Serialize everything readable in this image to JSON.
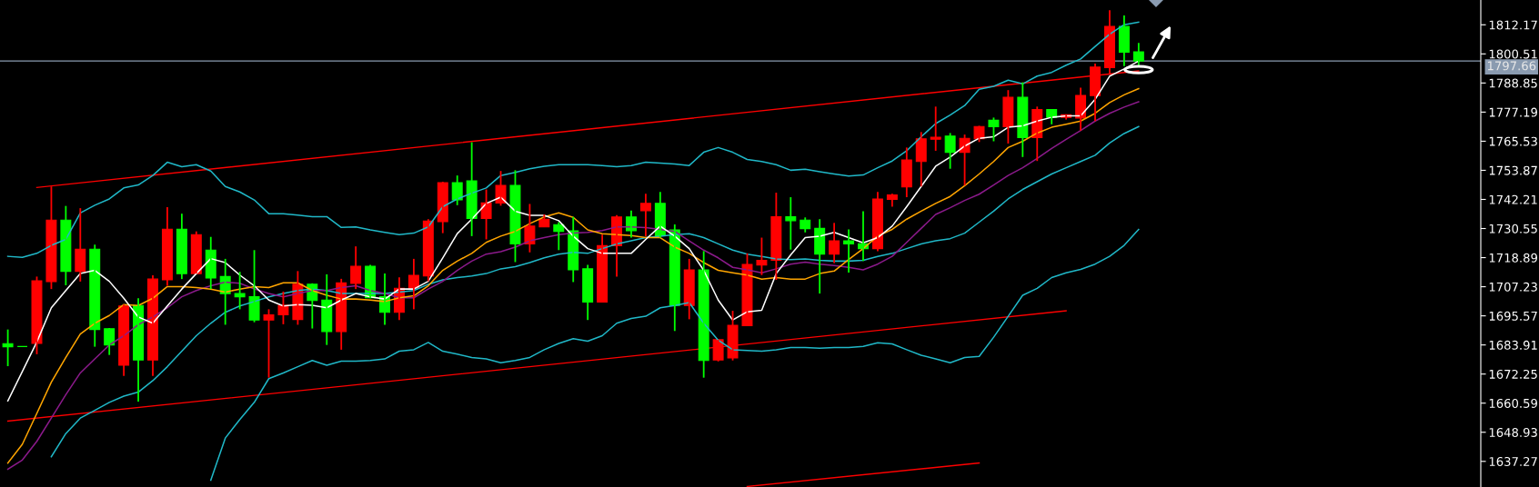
{
  "chart_data": {
    "type": "candlestick",
    "categories": [
      null,
      null,
      null,
      null,
      null,
      null,
      null,
      null,
      null,
      null,
      null,
      null,
      null,
      null,
      null,
      null,
      null,
      null,
      null,
      null,
      null,
      null,
      null,
      null,
      null,
      null,
      null,
      null,
      null,
      null,
      null,
      null,
      null,
      null,
      null,
      null,
      null,
      null,
      null,
      null,
      null,
      null,
      null,
      null,
      null,
      null,
      null,
      null,
      null,
      null,
      null,
      null,
      null,
      null,
      null,
      null,
      null,
      null,
      null,
      null,
      null,
      null,
      null,
      null,
      null,
      null,
      null,
      null,
      null,
      null,
      null,
      null,
      null,
      null,
      null,
      null,
      null,
      null,
      null
    ],
    "ohlc": [
      [
        1684.4,
        1690.1,
        1675.4,
        1683.2
      ],
      [
        1683.3,
        1683.3,
        1683.3,
        1683.3
      ],
      [
        1684.5,
        1711.3,
        1680.2,
        1709.6
      ],
      [
        1709.3,
        1747.4,
        1706.3,
        1733.9
      ],
      [
        1733.9,
        1739.6,
        1707.8,
        1713.4
      ],
      [
        1713.4,
        1738.7,
        1709.3,
        1722.3
      ],
      [
        1722.3,
        1724.1,
        1683.2,
        1690.1
      ],
      [
        1690.4,
        1690.7,
        1679.9,
        1683.9
      ],
      [
        1675.8,
        1700.1,
        1671.5,
        1699.5
      ],
      [
        1699.7,
        1702.6,
        1661.2,
        1677.9
      ],
      [
        1677.9,
        1711.8,
        1671.5,
        1710.3
      ],
      [
        1710.0,
        1739.1,
        1707.6,
        1730.3
      ],
      [
        1730.3,
        1736.5,
        1710.3,
        1712.5
      ],
      [
        1712.5,
        1729.4,
        1712.5,
        1728.1
      ],
      [
        1721.9,
        1727.2,
        1706.3,
        1710.7
      ],
      [
        1711.3,
        1718.4,
        1692.0,
        1704.5
      ],
      [
        1704.5,
        1713.2,
        1698.2,
        1703.2
      ],
      [
        1703.2,
        1721.9,
        1693.0,
        1693.9
      ],
      [
        1693.9,
        1698.2,
        1670.8,
        1696.0
      ],
      [
        1696.0,
        1705.3,
        1692.2,
        1699.8
      ],
      [
        1694.1,
        1713.5,
        1692.0,
        1708.2
      ],
      [
        1708.2,
        1708.6,
        1690.5,
        1701.7
      ],
      [
        1701.9,
        1712.2,
        1683.9,
        1689.3
      ],
      [
        1689.3,
        1710.4,
        1682.0,
        1708.8
      ],
      [
        1708.6,
        1723.4,
        1706.3,
        1715.4
      ],
      [
        1715.4,
        1716.0,
        1702.6,
        1702.8
      ],
      [
        1703.2,
        1712.5,
        1692.0,
        1697.0
      ],
      [
        1697.0,
        1711.0,
        1693.9,
        1706.6
      ],
      [
        1706.6,
        1718.4,
        1698.2,
        1711.8
      ],
      [
        1711.6,
        1734.3,
        1709.4,
        1733.5
      ],
      [
        1733.3,
        1749.3,
        1728.7,
        1748.9
      ],
      [
        1748.9,
        1751.8,
        1739.9,
        1742.0
      ],
      [
        1749.6,
        1765.1,
        1727.5,
        1734.6
      ],
      [
        1734.6,
        1746.2,
        1726.2,
        1740.8
      ],
      [
        1740.8,
        1753.6,
        1739.7,
        1747.8
      ],
      [
        1747.8,
        1753.9,
        1717.1,
        1724.4
      ],
      [
        1724.4,
        1740.4,
        1721.0,
        1731.5
      ],
      [
        1731.2,
        1736.2,
        1731.2,
        1734.3
      ],
      [
        1732.1,
        1733.1,
        1721.9,
        1729.4
      ],
      [
        1729.6,
        1735.2,
        1709.1,
        1714.0
      ],
      [
        1714.4,
        1716.0,
        1693.9,
        1701.1
      ],
      [
        1701.1,
        1728.1,
        1701.1,
        1723.7
      ],
      [
        1723.7,
        1735.9,
        1711.3,
        1735.2
      ],
      [
        1735.2,
        1737.7,
        1726.9,
        1729.7
      ],
      [
        1737.7,
        1744.5,
        1727.5,
        1740.6
      ],
      [
        1740.6,
        1745.2,
        1726.9,
        1727.7
      ],
      [
        1730.0,
        1732.2,
        1689.5,
        1699.7
      ],
      [
        1699.7,
        1718.4,
        1694.2,
        1714.0
      ],
      [
        1714.0,
        1721.5,
        1670.8,
        1677.7
      ],
      [
        1677.9,
        1686.0,
        1677.3,
        1686.0
      ],
      [
        1678.7,
        1697.6,
        1677.7,
        1691.8
      ],
      [
        1691.6,
        1720.6,
        1691.6,
        1716.2
      ],
      [
        1715.9,
        1726.9,
        1711.9,
        1717.8
      ],
      [
        1717.8,
        1744.9,
        1710.0,
        1735.3
      ],
      [
        1735.3,
        1743.1,
        1722.1,
        1733.7
      ],
      [
        1733.9,
        1735.0,
        1729.0,
        1730.5
      ],
      [
        1730.6,
        1734.3,
        1704.5,
        1720.3
      ],
      [
        1720.3,
        1732.8,
        1716.7,
        1725.6
      ],
      [
        1725.6,
        1730.2,
        1712.9,
        1724.4
      ],
      [
        1724.4,
        1737.5,
        1717.5,
        1722.5
      ],
      [
        1722.5,
        1745.2,
        1721.5,
        1742.4
      ],
      [
        1742.2,
        1744.5,
        1739.3,
        1744.0
      ],
      [
        1747.2,
        1763.0,
        1743.1,
        1758.0
      ],
      [
        1757.4,
        1769.2,
        1747.4,
        1766.5
      ],
      [
        1766.3,
        1779.4,
        1761.7,
        1767.1
      ],
      [
        1767.6,
        1768.8,
        1754.5,
        1761.1
      ],
      [
        1761.1,
        1768.2,
        1747.8,
        1766.7
      ],
      [
        1766.5,
        1771.7,
        1765.2,
        1771.4
      ],
      [
        1773.9,
        1775.0,
        1765.5,
        1771.3
      ],
      [
        1771.3,
        1786.0,
        1764.6,
        1783.1
      ],
      [
        1783.1,
        1789.1,
        1759.2,
        1767.0
      ],
      [
        1767.0,
        1779.4,
        1757.6,
        1778.2
      ],
      [
        1778.2,
        1778.3,
        1772.3,
        1775.1
      ],
      [
        1775.1,
        1776.3,
        1774.2,
        1776.1
      ],
      [
        1774.8,
        1787.0,
        1769.8,
        1783.9
      ],
      [
        1783.8,
        1796.6,
        1773.6,
        1795.2
      ],
      [
        1795.0,
        1818.0,
        1792.2,
        1811.5
      ],
      [
        1811.5,
        1815.9,
        1795.6,
        1801.2
      ],
      [
        1801.3,
        1804.9,
        1795.4,
        1797.66
      ]
    ],
    "colors": [
      "#00ff00",
      "#00ff00",
      "#ff0000",
      "#ff0000",
      "#00ff00",
      "#ff0000",
      "#00ff00",
      "#00ff00",
      "#ff0000",
      "#00ff00",
      "#ff0000",
      "#ff0000",
      "#00ff00",
      "#ff0000",
      "#00ff00",
      "#00ff00",
      "#00ff00",
      "#00ff00",
      "#ff0000",
      "#ff0000",
      "#ff0000",
      "#00ff00",
      "#00ff00",
      "#ff0000",
      "#ff0000",
      "#00ff00",
      "#00ff00",
      "#ff0000",
      "#ff0000",
      "#ff0000",
      "#ff0000",
      "#00ff00",
      "#00ff00",
      "#ff0000",
      "#ff0000",
      "#00ff00",
      "#ff0000",
      "#ff0000",
      "#00ff00",
      "#00ff00",
      "#00ff00",
      "#ff0000",
      "#ff0000",
      "#00ff00",
      "#ff0000",
      "#00ff00",
      "#00ff00",
      "#ff0000",
      "#00ff00",
      "#ff0000",
      "#ff0000",
      "#ff0000",
      "#ff0000",
      "#ff0000",
      "#00ff00",
      "#00ff00",
      "#00ff00",
      "#ff0000",
      "#00ff00",
      "#00ff00",
      "#ff0000",
      "#ff0000",
      "#ff0000",
      "#ff0000",
      "#ff0000",
      "#00ff00",
      "#ff0000",
      "#ff0000",
      "#00ff00",
      "#ff0000",
      "#00ff00",
      "#ff0000",
      "#00ff00",
      "#ff0000",
      "#ff0000",
      "#ff0000",
      "#ff0000",
      "#00ff00",
      "#00ff00"
    ],
    "series": [
      {
        "type": "line",
        "color": "#20b8c8",
        "values": [
          1719.4,
          1719.0,
          1720.6,
          1723.8,
          1726.2,
          1736.8,
          1739.9,
          1742.4,
          1746.8,
          1748.0,
          1751.8,
          1757.1,
          1755.3,
          1756.1,
          1753.6,
          1747.4,
          1745.2,
          1742.0,
          1736.5,
          1736.5,
          1735.9,
          1735.3,
          1735.3,
          1731.0,
          1731.2,
          1730.0,
          1729.0,
          1728.1,
          1728.7,
          1731.2,
          1739.3,
          1742.4,
          1744.7,
          1746.8,
          1751.8,
          1753.0,
          1754.5,
          1755.5,
          1756.1,
          1756.1,
          1756.1,
          1755.8,
          1755.3,
          1755.8,
          1757.1,
          1756.8,
          1756.4,
          1755.8,
          1761.1,
          1763.0,
          1761.1,
          1758.2,
          1757.4,
          1756.1,
          1753.9,
          1754.3,
          1753.3,
          1752.4,
          1751.6,
          1752.0,
          1754.9,
          1757.6,
          1761.7,
          1767.3,
          1772.6,
          1776.0,
          1779.8,
          1786.3,
          1787.5,
          1790.0,
          1788.5,
          1791.6,
          1793.1,
          1796.0,
          1798.5,
          1803.5,
          1808.4,
          1812.2,
          1813.2
        ]
      },
      {
        "type": "line",
        "color": "#20b8c8",
        "values": [
          null,
          null,
          null,
          1639.1,
          1648.4,
          1654.6,
          1657.7,
          1660.9,
          1663.4,
          1665.0,
          1669.6,
          1675.2,
          1681.4,
          1687.6,
          1692.6,
          1697.0,
          1699.5,
          1701.3,
          1703.2,
          1704.5,
          1705.7,
          1706.3,
          1705.7,
          1704.5,
          1704.5,
          1704.5,
          1704.5,
          1705.1,
          1705.7,
          1708.2,
          1710.0,
          1710.9,
          1711.5,
          1712.5,
          1714.4,
          1715.3,
          1716.9,
          1718.8,
          1720.3,
          1721.0,
          1720.6,
          1722.5,
          1724.4,
          1725.6,
          1726.9,
          1727.5,
          1728.1,
          1728.5,
          1726.9,
          1724.4,
          1721.9,
          1720.3,
          1719.4,
          1718.4,
          1718.1,
          1718.4,
          1717.8,
          1717.5,
          1717.5,
          1717.8,
          1719.4,
          1720.6,
          1722.5,
          1724.4,
          1725.6,
          1726.5,
          1728.7,
          1733.1,
          1737.5,
          1742.4,
          1746.2,
          1749.3,
          1752.4,
          1754.9,
          1757.4,
          1759.9,
          1764.8,
          1768.6,
          1771.4
        ]
      },
      {
        "type": "line",
        "color": "#20b8c8",
        "values": [
          null,
          null,
          null,
          null,
          null,
          null,
          null,
          null,
          null,
          null,
          null,
          null,
          null,
          null,
          1629.7,
          1646.6,
          1654.0,
          1660.9,
          1670.4,
          1672.7,
          1675.2,
          1677.7,
          1675.8,
          1677.4,
          1677.4,
          1677.7,
          1678.3,
          1681.4,
          1682.0,
          1684.9,
          1681.4,
          1680.2,
          1678.9,
          1678.3,
          1676.8,
          1677.7,
          1678.9,
          1682.0,
          1684.5,
          1686.4,
          1685.4,
          1687.6,
          1692.6,
          1694.5,
          1695.4,
          1698.8,
          1699.7,
          1700.9,
          1692.6,
          1685.8,
          1682.0,
          1681.7,
          1681.4,
          1682.0,
          1682.9,
          1682.9,
          1682.6,
          1682.9,
          1682.9,
          1683.3,
          1684.8,
          1684.3,
          1682.0,
          1679.8,
          1678.3,
          1676.8,
          1678.9,
          1679.3,
          1687.0,
          1695.4,
          1703.8,
          1706.6,
          1710.9,
          1712.8,
          1714.2,
          1716.3,
          1719.4,
          1723.8,
          1730.2
        ]
      },
      {
        "type": "line",
        "color": "#8b1a8b",
        "values": [
          1634.1,
          1637.8,
          1645.3,
          1654.6,
          1664.0,
          1672.7,
          1678.3,
          1683.9,
          1687.6,
          1692.0,
          1695.1,
          1698.8,
          1703.2,
          1705.7,
          1707.6,
          1709.1,
          1708.6,
          1706.3,
          1704.5,
          1703.2,
          1704.5,
          1705.7,
          1705.7,
          1706.9,
          1707.6,
          1705.7,
          1704.5,
          1702.8,
          1702.8,
          1706.3,
          1709.4,
          1713.8,
          1717.5,
          1720.3,
          1721.3,
          1723.1,
          1725.6,
          1726.9,
          1728.1,
          1728.7,
          1729.0,
          1729.7,
          1731.2,
          1731.2,
          1730.9,
          1730.2,
          1729.4,
          1725.6,
          1721.9,
          1718.8,
          1715.0,
          1714.0,
          1712.8,
          1714.4,
          1716.3,
          1717.1,
          1716.3,
          1715.7,
          1715.0,
          1714.0,
          1716.3,
          1719.4,
          1725.0,
          1730.6,
          1736.2,
          1738.9,
          1741.8,
          1744.3,
          1748.0,
          1751.8,
          1754.9,
          1758.6,
          1762.6,
          1766.3,
          1769.8,
          1773.6,
          1776.7,
          1779.2,
          1781.3
        ]
      },
      {
        "type": "line",
        "color": "#ffa500",
        "values": [
          1636.6,
          1644.1,
          1656.5,
          1669.0,
          1678.9,
          1688.3,
          1692.6,
          1695.7,
          1700.1,
          1699.7,
          1702.6,
          1707.3,
          1707.3,
          1706.9,
          1706.3,
          1705.1,
          1706.3,
          1707.3,
          1706.9,
          1708.8,
          1708.8,
          1705.7,
          1703.8,
          1702.3,
          1702.3,
          1701.9,
          1701.3,
          1702.8,
          1703.6,
          1707.6,
          1713.8,
          1717.5,
          1720.6,
          1725.0,
          1727.5,
          1729.4,
          1732.5,
          1735.2,
          1736.8,
          1735.0,
          1730.0,
          1728.5,
          1728.1,
          1727.7,
          1726.9,
          1726.9,
          1723.1,
          1720.6,
          1716.9,
          1713.8,
          1712.8,
          1711.9,
          1710.3,
          1710.9,
          1710.3,
          1710.3,
          1712.5,
          1713.5,
          1718.1,
          1722.5,
          1727.5,
          1730.2,
          1734.3,
          1737.5,
          1740.6,
          1743.4,
          1747.7,
          1752.4,
          1757.4,
          1763.0,
          1765.5,
          1768.8,
          1771.1,
          1772.3,
          1773.6,
          1776.7,
          1781.0,
          1784.1,
          1786.6
        ]
      },
      {
        "type": "line",
        "color": "#ffffff",
        "values": [
          1661.5,
          1673.3,
          1685.1,
          1698.8,
          1705.7,
          1712.5,
          1713.8,
          1709.4,
          1702.6,
          1695.1,
          1692.6,
          1699.5,
          1706.3,
          1712.5,
          1718.5,
          1716.9,
          1711.9,
          1707.6,
          1701.9,
          1699.5,
          1700.1,
          1699.8,
          1698.8,
          1701.9,
          1704.5,
          1703.2,
          1702.3,
          1706.3,
          1706.3,
          1709.4,
          1718.8,
          1728.5,
          1734.3,
          1740.6,
          1743.1,
          1737.5,
          1735.8,
          1735.8,
          1733.7,
          1727.5,
          1722.5,
          1720.6,
          1720.6,
          1720.6,
          1726.2,
          1731.5,
          1727.5,
          1722.5,
          1713.8,
          1701.9,
          1693.9,
          1697.2,
          1697.8,
          1712.5,
          1720.0,
          1726.9,
          1727.5,
          1729.0,
          1726.9,
          1724.8,
          1726.9,
          1731.5,
          1739.3,
          1747.4,
          1755.5,
          1759.2,
          1763.6,
          1766.7,
          1767.3,
          1771.1,
          1771.7,
          1773.6,
          1775.1,
          1775.7,
          1775.7,
          1782.3,
          1791.6,
          1794.5,
          1797.6
        ]
      },
      {
        "type": "line",
        "color": "#ff0000",
        "values": [
          null,
          null,
          1747.0,
          null,
          null,
          null,
          null,
          null,
          null,
          null,
          null,
          null,
          null,
          null,
          null,
          null,
          null,
          null,
          null,
          null,
          null,
          null,
          null,
          null,
          null,
          null,
          null,
          null,
          null,
          null,
          null,
          null,
          null,
          null,
          null,
          null,
          null,
          null,
          null,
          null,
          null,
          null,
          null,
          null,
          null,
          null,
          null,
          null,
          null,
          null,
          null,
          null,
          null,
          null,
          null,
          null,
          null,
          null,
          null,
          null,
          null,
          null,
          null,
          null,
          null,
          null,
          null,
          null,
          null,
          null,
          null,
          null,
          null,
          null,
          null,
          null,
          null,
          null,
          1793.7
        ]
      },
      {
        "type": "line",
        "color": "#ff0000",
        "values": [
          1653.4,
          null,
          null,
          null,
          null,
          null,
          null,
          null,
          null,
          null,
          null,
          null,
          null,
          null,
          null,
          null,
          null,
          null,
          null,
          null,
          null,
          null,
          null,
          null,
          null,
          null,
          null,
          null,
          null,
          null,
          null,
          null,
          null,
          null,
          null,
          null,
          null,
          null,
          null,
          null,
          null,
          null,
          null,
          null,
          null,
          null,
          null,
          null,
          null,
          null,
          null,
          null,
          null,
          null,
          null,
          null,
          null,
          null,
          null,
          null,
          null,
          null,
          null,
          null,
          null,
          null,
          null,
          null,
          null,
          null,
          null,
          null,
          null,
          1697.6,
          null,
          null,
          null,
          null,
          null
        ]
      },
      {
        "type": "line",
        "color": "#ff0000",
        "values": [
          null,
          null,
          null,
          null,
          null,
          null,
          null,
          null,
          null,
          null,
          null,
          null,
          null,
          null,
          null,
          null,
          null,
          null,
          null,
          null,
          null,
          null,
          null,
          null,
          null,
          null,
          null,
          null,
          null,
          null,
          null,
          null,
          null,
          null,
          null,
          null,
          null,
          null,
          null,
          null,
          null,
          null,
          null,
          null,
          null,
          null,
          null,
          null,
          null,
          null,
          null,
          1627.2,
          null,
          null,
          null,
          null,
          null,
          null,
          null,
          null,
          null,
          null,
          null,
          null,
          null,
          null,
          null,
          1636.6,
          null,
          null,
          null,
          null,
          null,
          null,
          null,
          null,
          null,
          null,
          null
        ]
      }
    ],
    "ylim": [
      1627.0,
      1822.1
    ],
    "yticks": [
      1812.17,
      1800.51,
      1788.85,
      1777.19,
      1765.53,
      1753.87,
      1742.21,
      1730.55,
      1718.89,
      1707.23,
      1695.57,
      1683.91,
      1672.25,
      1660.59,
      1648.93,
      1637.27
    ],
    "tick_labels": "y",
    "ref_lines": [
      {
        "axis": "y",
        "value": 1797.66,
        "label": "1797.66",
        "color": "#8a9bb0"
      }
    ]
  }
}
